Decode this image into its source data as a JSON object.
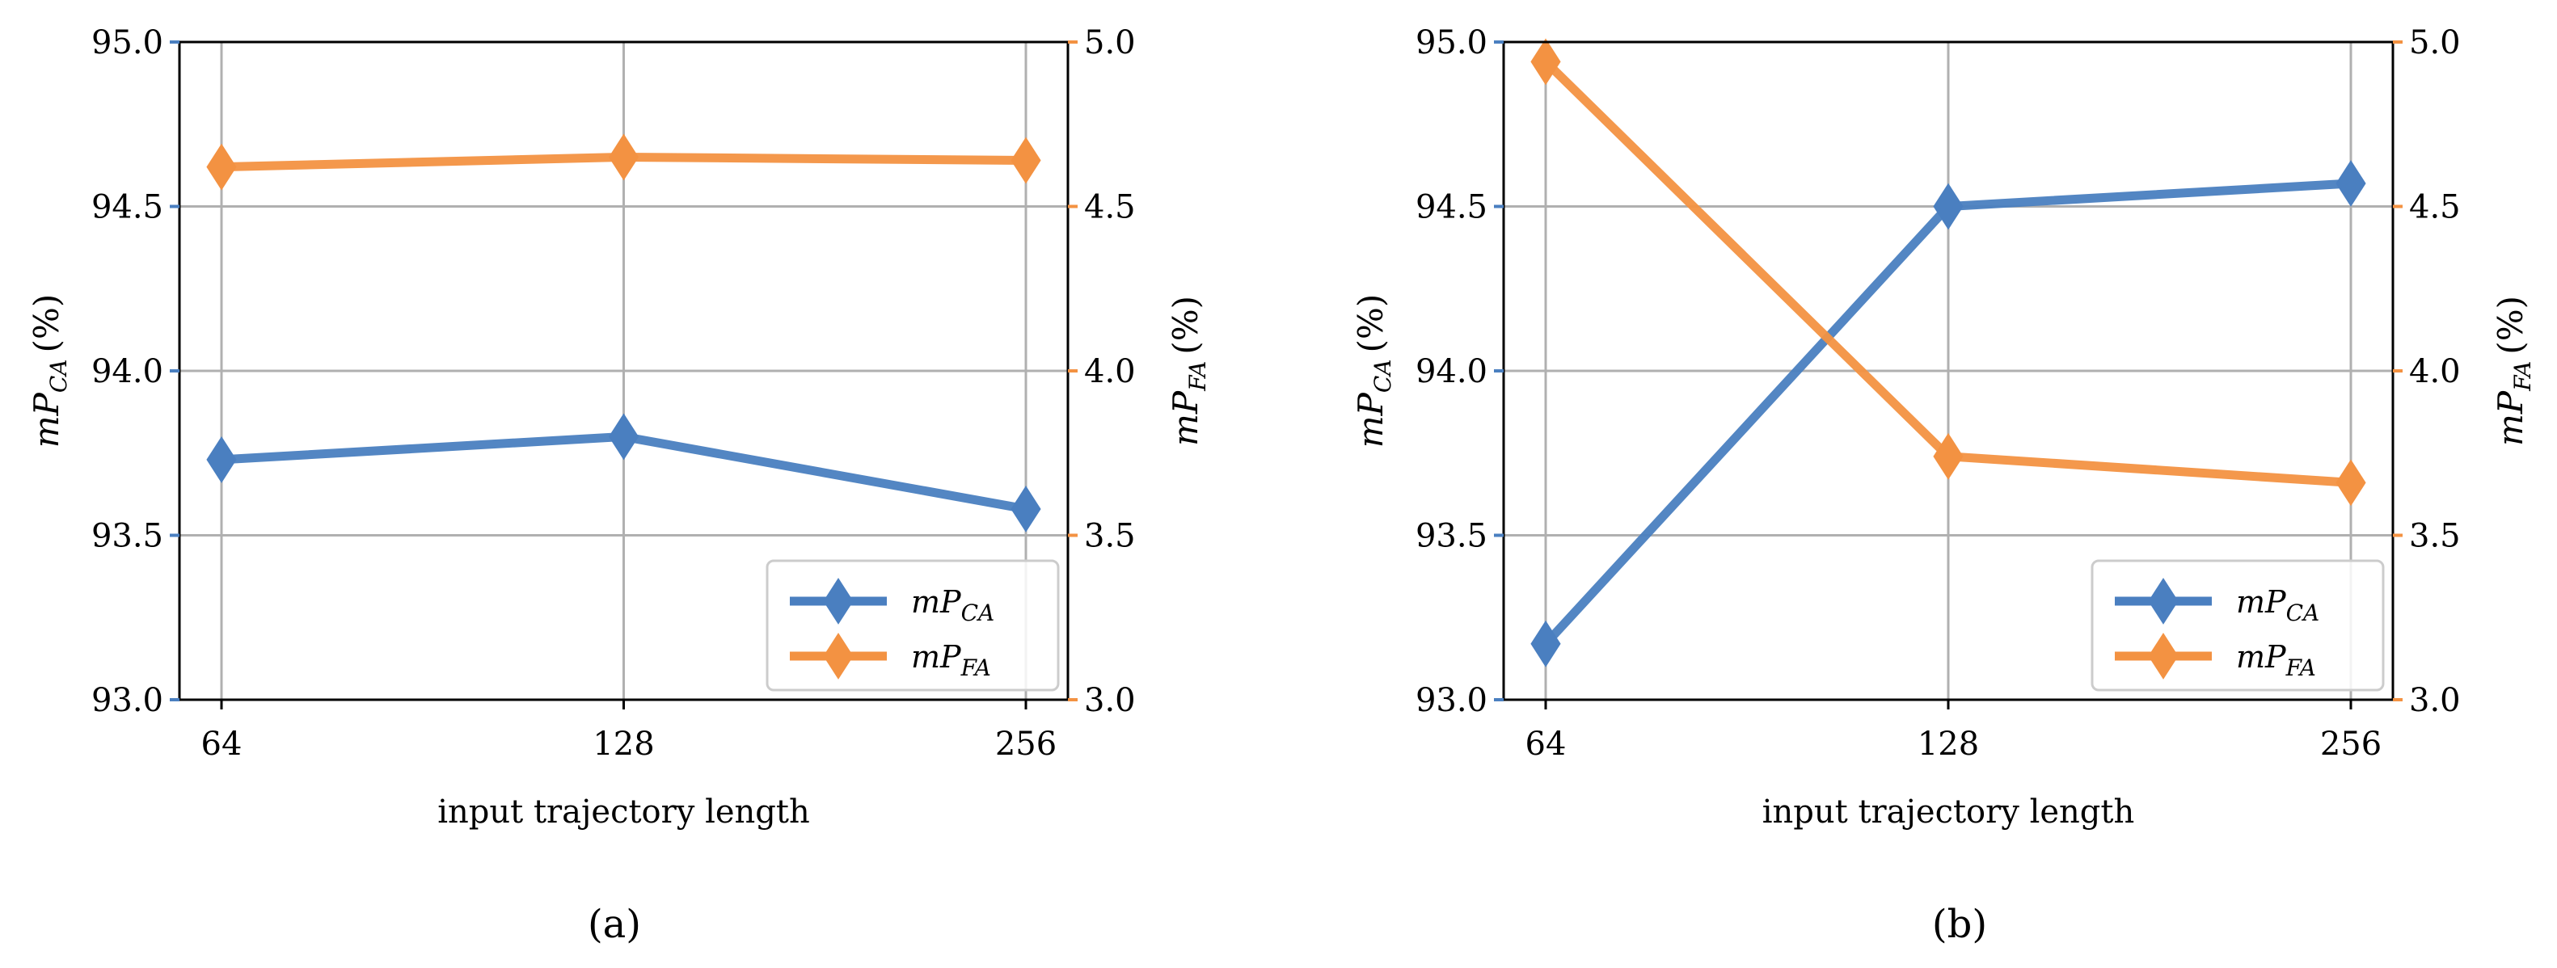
{
  "colors": {
    "ca": "#4a7fc0",
    "fa": "#f39242",
    "grid": "#b0b0b0",
    "axis": "#000000"
  },
  "chart_data": [
    {
      "type": "line",
      "caption": "(a)",
      "categories": [
        "64",
        "128",
        "256"
      ],
      "x": [
        64,
        128,
        256
      ],
      "xlabel": "input trajectory length",
      "left_axis": {
        "label_base": "mP",
        "label_sub": "CA",
        "label_unit": "(%)",
        "ylim": [
          93.0,
          95.0
        ],
        "ticks": [
          "93.0",
          "93.5",
          "94.0",
          "94.5",
          "95.0"
        ],
        "tick_values": [
          93.0,
          93.5,
          94.0,
          94.5,
          95.0
        ]
      },
      "right_axis": {
        "label_base": "mP",
        "label_sub": "FA",
        "label_unit": "(%)",
        "ylim": [
          3.0,
          5.0
        ],
        "ticks": [
          "3.0",
          "3.5",
          "4.0",
          "4.5",
          "5.0"
        ],
        "tick_values": [
          3.0,
          3.5,
          4.0,
          4.5,
          5.0
        ]
      },
      "series": [
        {
          "name_base": "mP",
          "name_sub": "CA",
          "axis": "left",
          "color_key": "ca",
          "values": [
            93.73,
            93.8,
            93.58
          ]
        },
        {
          "name_base": "mP",
          "name_sub": "FA",
          "axis": "right",
          "color_key": "fa",
          "values": [
            4.62,
            4.65,
            4.64
          ]
        }
      ],
      "legend": "lower-right",
      "grid": true
    },
    {
      "type": "line",
      "caption": "(b)",
      "categories": [
        "64",
        "128",
        "256"
      ],
      "x": [
        64,
        128,
        256
      ],
      "xlabel": "input trajectory length",
      "left_axis": {
        "label_base": "mP",
        "label_sub": "CA",
        "label_unit": "(%)",
        "ylim": [
          93.0,
          95.0
        ],
        "ticks": [
          "93.0",
          "93.5",
          "94.0",
          "94.5",
          "95.0"
        ],
        "tick_values": [
          93.0,
          93.5,
          94.0,
          94.5,
          95.0
        ]
      },
      "right_axis": {
        "label_base": "mP",
        "label_sub": "FA",
        "label_unit": "(%)",
        "ylim": [
          3.0,
          5.0
        ],
        "ticks": [
          "3.0",
          "3.5",
          "4.0",
          "4.5",
          "5.0"
        ],
        "tick_values": [
          3.0,
          3.5,
          4.0,
          4.5,
          5.0
        ]
      },
      "series": [
        {
          "name_base": "mP",
          "name_sub": "CA",
          "axis": "left",
          "color_key": "ca",
          "values": [
            93.17,
            94.5,
            94.57
          ]
        },
        {
          "name_base": "mP",
          "name_sub": "FA",
          "axis": "right",
          "color_key": "fa",
          "values": [
            4.94,
            3.74,
            3.66
          ]
        }
      ],
      "legend": "lower-right",
      "grid": true
    }
  ]
}
